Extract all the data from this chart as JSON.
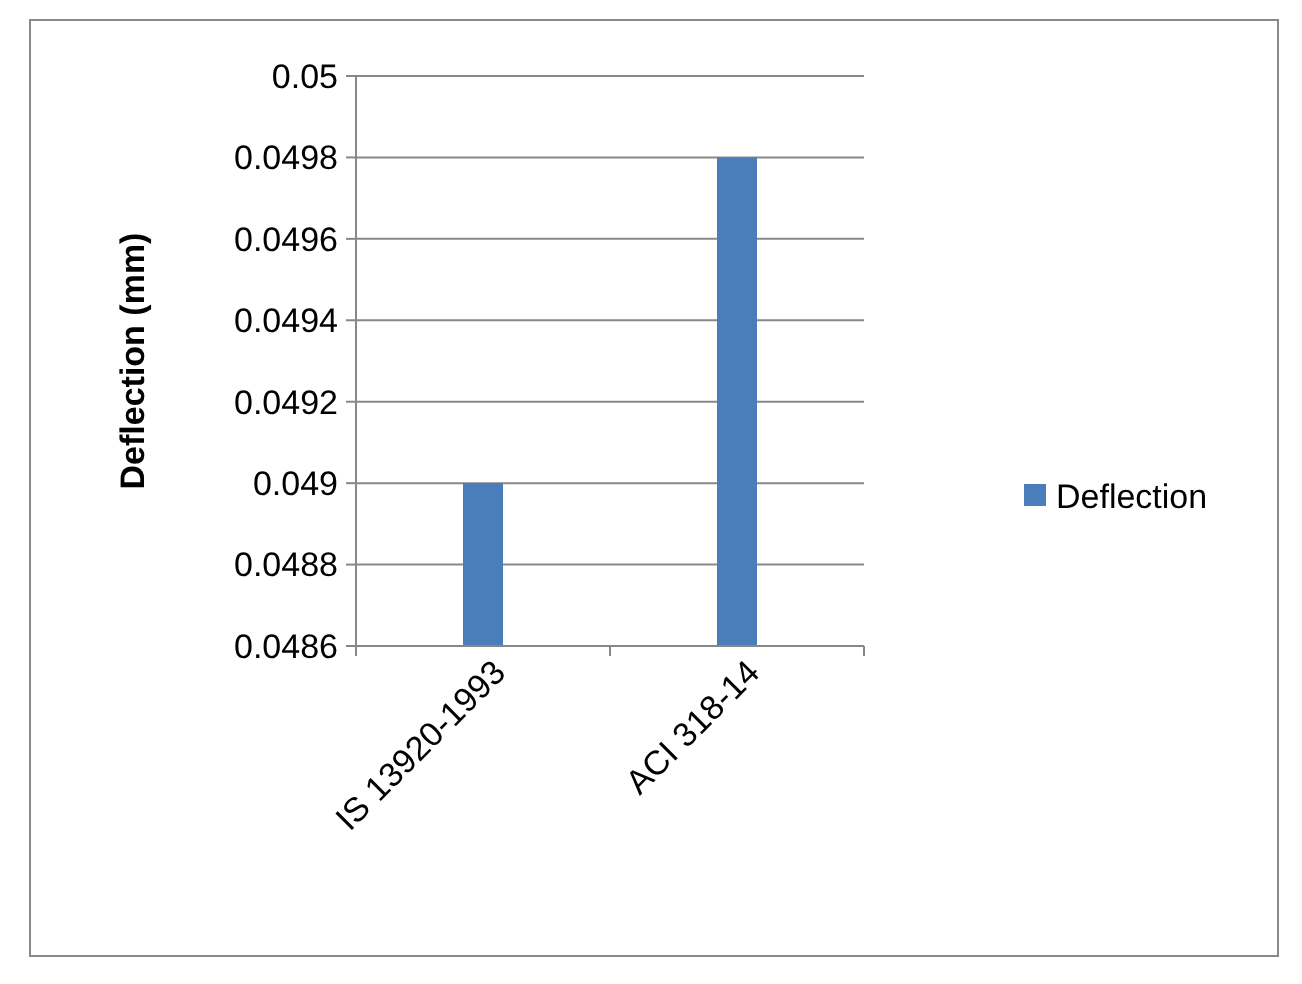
{
  "chart_data": {
    "type": "bar",
    "ylabel": "Deflection (mm)",
    "categories": [
      "IS 13920-1993",
      "ACI 318-14"
    ],
    "series": [
      {
        "name": "Deflection",
        "color": "#4a7ebb",
        "values": [
          0.049,
          0.0498
        ]
      }
    ],
    "ylim": [
      0.0486,
      0.05
    ],
    "yticks": [
      0.0486,
      0.0488,
      0.049,
      0.0492,
      0.0494,
      0.0496,
      0.0498,
      0.05
    ],
    "grid": "y",
    "legend": "right"
  }
}
